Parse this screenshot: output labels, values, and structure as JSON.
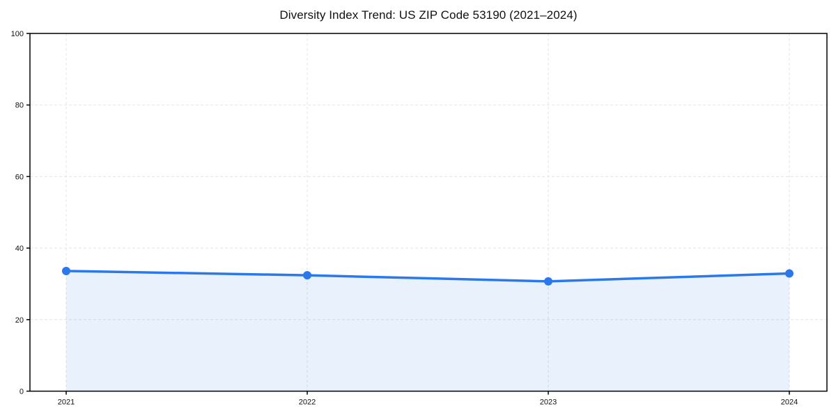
{
  "chart_data": {
    "type": "area",
    "title": "Diversity Index Trend: US ZIP Code 53190 (2021–2024)",
    "categories": [
      "2021",
      "2022",
      "2023",
      "2024"
    ],
    "series": [
      {
        "name": "Diversity Index",
        "values": [
          33.6,
          32.4,
          30.7,
          32.9
        ]
      }
    ],
    "xlabel": "",
    "ylabel": "",
    "ylim": [
      0,
      100
    ],
    "yticks": [
      0,
      20,
      40,
      60,
      80,
      100
    ],
    "grid": true,
    "grid_style": "dashed",
    "legend": false,
    "colors": {
      "line": "#2a79ec",
      "marker": "#2a79ec",
      "fill": "rgba(42, 121, 236, 0.10)",
      "gridline": "#e4e4e4",
      "border": "#000000",
      "tick_text": "#111111",
      "background": "#ffffff"
    }
  }
}
